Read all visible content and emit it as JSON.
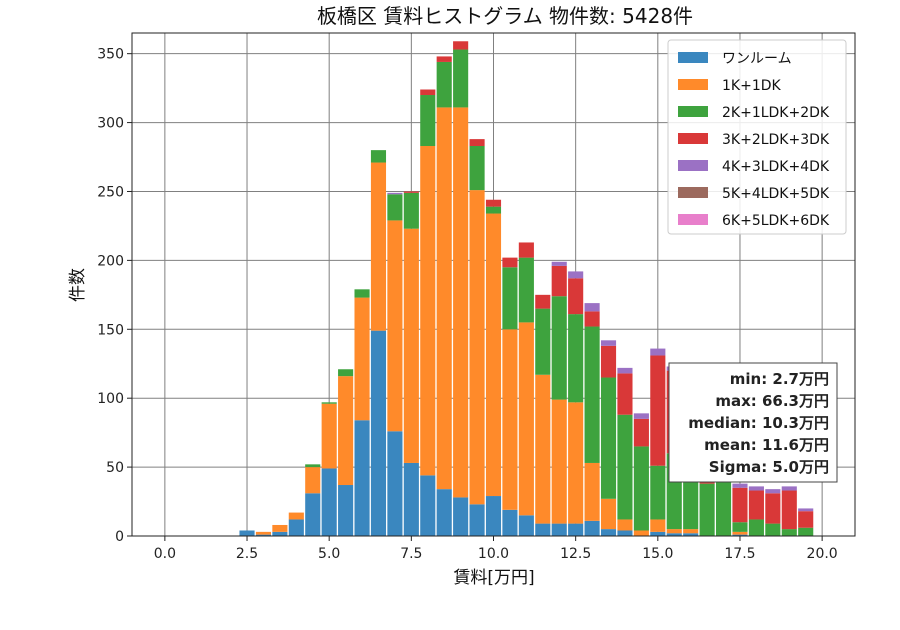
{
  "chart_data": {
    "type": "bar",
    "title": "板橋区 賃料ヒストグラム 物件数: 5428件",
    "xlabel": "賃料[万円]",
    "ylabel": "件数",
    "xlim": [
      -1.0,
      21.0
    ],
    "ylim": [
      0,
      365
    ],
    "xticks": [
      "0.0",
      "2.5",
      "5.0",
      "7.5",
      "10.0",
      "12.5",
      "15.0",
      "17.5",
      "20.0"
    ],
    "yticks": [
      "0",
      "50",
      "100",
      "150",
      "200",
      "250",
      "300",
      "350"
    ],
    "grid": true,
    "stacked": true,
    "bin_width": 0.5,
    "bins": [
      2.5,
      3.0,
      3.5,
      4.0,
      4.5,
      5.0,
      5.5,
      6.0,
      6.5,
      7.0,
      7.5,
      8.0,
      8.5,
      9.0,
      9.5,
      10.0,
      10.5,
      11.0,
      11.5,
      12.0,
      12.5,
      13.0,
      13.5,
      14.0,
      14.5,
      15.0,
      15.5,
      16.0,
      16.5,
      17.0,
      17.5,
      18.0,
      18.5,
      19.0,
      19.5
    ],
    "legend_position": "top-right",
    "series": [
      {
        "name": "ワンルーム",
        "color": "#3a87bf",
        "values": [
          4,
          1,
          3,
          12,
          31,
          49,
          37,
          84,
          149,
          76,
          53,
          44,
          34,
          28,
          23,
          29,
          19,
          15,
          9,
          9,
          9,
          11,
          5,
          4,
          0,
          3,
          2,
          2,
          0,
          0,
          1,
          0,
          0,
          0,
          0
        ]
      },
      {
        "name": "1K+1DK",
        "color": "#ff8a2a",
        "values": [
          0,
          2,
          5,
          5,
          19,
          47,
          79,
          89,
          122,
          153,
          170,
          239,
          277,
          283,
          228,
          205,
          131,
          140,
          108,
          90,
          88,
          42,
          22,
          8,
          4,
          9,
          3,
          3,
          0,
          0,
          2,
          0,
          0,
          0,
          0
        ]
      },
      {
        "name": "2K+1LDK+2DK",
        "color": "#3ea33e",
        "values": [
          0,
          0,
          0,
          0,
          2,
          1,
          5,
          6,
          9,
          19,
          26,
          37,
          33,
          42,
          32,
          5,
          45,
          47,
          48,
          75,
          64,
          99,
          88,
          76,
          61,
          39,
          55,
          46,
          38,
          53,
          7,
          12,
          9,
          5,
          6
        ]
      },
      {
        "name": "3K+2LDK+3DK",
        "color": "#d93838",
        "values": [
          0,
          0,
          0,
          0,
          0,
          0,
          0,
          0,
          0,
          0,
          1,
          4,
          4,
          6,
          5,
          5,
          7,
          11,
          10,
          22,
          26,
          11,
          23,
          30,
          20,
          80,
          60,
          58,
          57,
          49,
          25,
          21,
          22,
          28,
          12
        ]
      },
      {
        "name": "4K+3LDK+4DK",
        "color": "#9b71c4",
        "values": [
          0,
          0,
          0,
          0,
          0,
          0,
          0,
          0,
          0,
          1,
          0,
          0,
          0,
          0,
          0,
          0,
          0,
          0,
          0,
          3,
          5,
          6,
          4,
          4,
          4,
          5,
          3,
          3,
          2,
          4,
          3,
          3,
          3,
          3,
          2
        ]
      },
      {
        "name": "5K+4LDK+5DK",
        "color": "#9c6a5e",
        "values": [
          0,
          0,
          0,
          0,
          0,
          0,
          0,
          0,
          0,
          0,
          0,
          0,
          0,
          0,
          0,
          0,
          0,
          0,
          0,
          0,
          0,
          0,
          0,
          0,
          0,
          0,
          0,
          0,
          0,
          0,
          0,
          0,
          0,
          0,
          0
        ]
      },
      {
        "name": "6K+5LDK+6DK",
        "color": "#e87fcb",
        "values": [
          0,
          0,
          0,
          0,
          0,
          0,
          0,
          0,
          0,
          0,
          0,
          0,
          0,
          0,
          0,
          0,
          0,
          0,
          0,
          0,
          0,
          0,
          0,
          0,
          0,
          0,
          0,
          0,
          0,
          0,
          0,
          0,
          0,
          0,
          0
        ]
      }
    ],
    "annotations": [
      "min: 2.7万円",
      "max: 66.3万円",
      "median: 10.3万円",
      "mean: 11.6万円",
      "Sigma: 5.0万円"
    ],
    "stats_position": "bottom-right"
  }
}
